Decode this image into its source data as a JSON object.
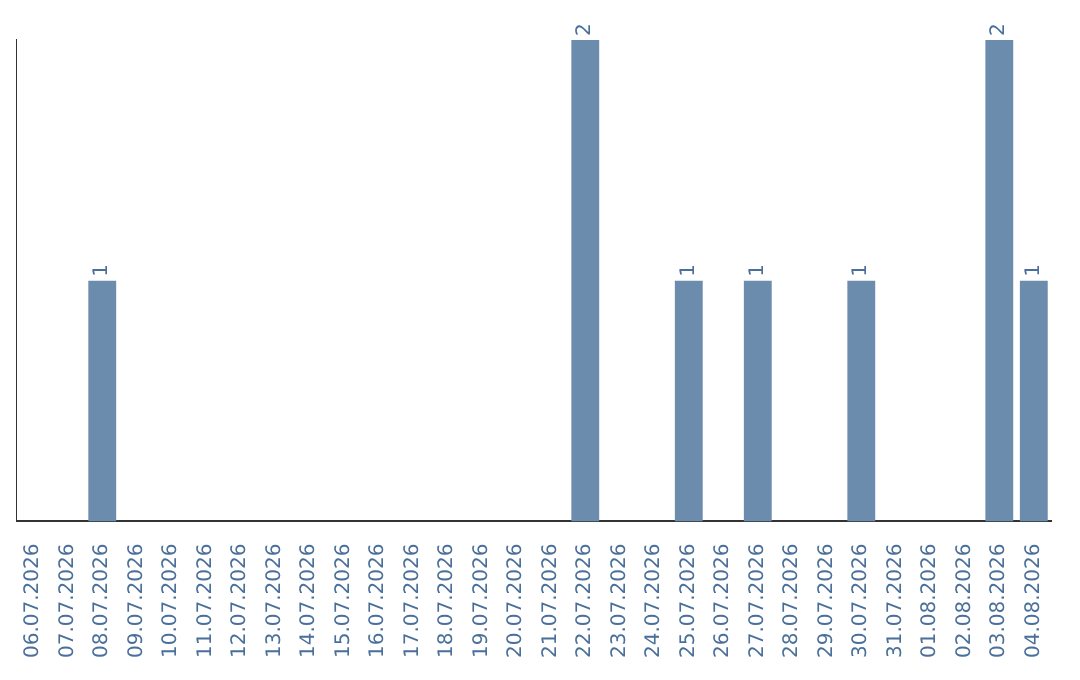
{
  "chart_data": {
    "type": "bar",
    "categories": [
      "06.07.2026",
      "07.07.2026",
      "08.07.2026",
      "09.07.2026",
      "10.07.2026",
      "11.07.2026",
      "12.07.2026",
      "13.07.2026",
      "14.07.2026",
      "15.07.2026",
      "16.07.2026",
      "17.07.2026",
      "18.07.2026",
      "19.07.2026",
      "20.07.2026",
      "21.07.2026",
      "22.07.2026",
      "23.07.2026",
      "24.07.2026",
      "25.07.2026",
      "26.07.2026",
      "27.07.2026",
      "28.07.2026",
      "29.07.2026",
      "30.07.2026",
      "31.07.2026",
      "01.08.2026",
      "02.08.2026",
      "03.08.2026",
      "04.08.2026"
    ],
    "values": [
      null,
      null,
      1,
      null,
      null,
      null,
      null,
      null,
      null,
      null,
      null,
      null,
      null,
      null,
      null,
      null,
      2,
      null,
      null,
      1,
      null,
      1,
      null,
      null,
      1,
      null,
      null,
      null,
      2,
      1
    ],
    "color": "#6b8cad",
    "data_labels": true,
    "grid": false,
    "legend": false
  }
}
